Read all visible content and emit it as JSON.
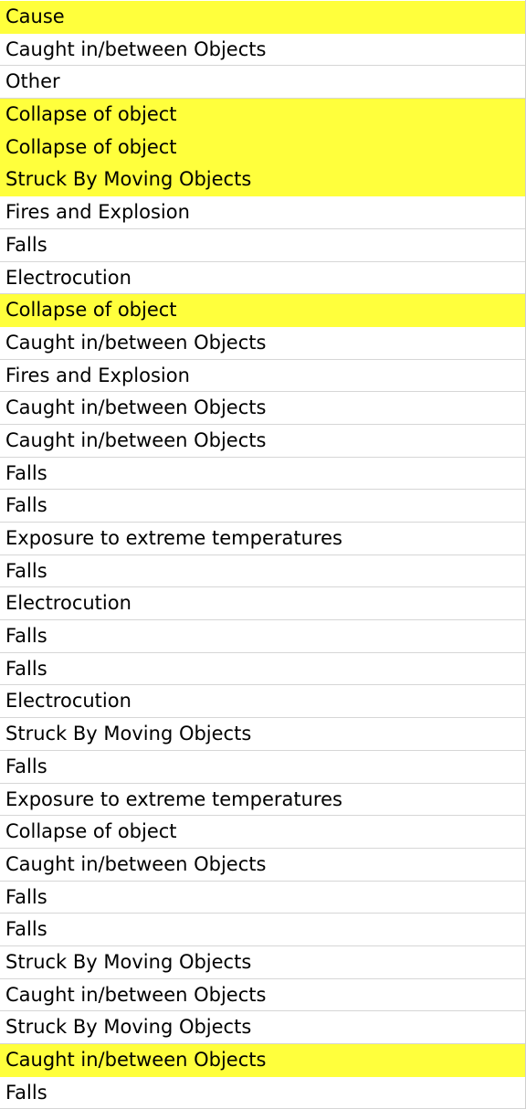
{
  "column": {
    "header": "Cause",
    "highlight_color": "#ffff3c",
    "rows": [
      {
        "text": "Cause",
        "highlighted": true
      },
      {
        "text": "Caught in/between Objects",
        "highlighted": false
      },
      {
        "text": "Other",
        "highlighted": false
      },
      {
        "text": "Collapse of object",
        "highlighted": true
      },
      {
        "text": "Collapse of object",
        "highlighted": true
      },
      {
        "text": "Struck By Moving Objects",
        "highlighted": true
      },
      {
        "text": "Fires and Explosion",
        "highlighted": false
      },
      {
        "text": "Falls",
        "highlighted": false
      },
      {
        "text": "Electrocution",
        "highlighted": false
      },
      {
        "text": "Collapse of object",
        "highlighted": true
      },
      {
        "text": "Caught in/between Objects",
        "highlighted": false
      },
      {
        "text": "Fires and Explosion",
        "highlighted": false
      },
      {
        "text": "Caught in/between Objects",
        "highlighted": false
      },
      {
        "text": "Caught in/between Objects",
        "highlighted": false
      },
      {
        "text": "Falls",
        "highlighted": false
      },
      {
        "text": "Falls",
        "highlighted": false
      },
      {
        "text": "Exposure to extreme temperatures",
        "highlighted": false
      },
      {
        "text": "Falls",
        "highlighted": false
      },
      {
        "text": "Electrocution",
        "highlighted": false
      },
      {
        "text": "Falls",
        "highlighted": false
      },
      {
        "text": "Falls",
        "highlighted": false
      },
      {
        "text": "Electrocution",
        "highlighted": false
      },
      {
        "text": "Struck By Moving Objects",
        "highlighted": false
      },
      {
        "text": "Falls",
        "highlighted": false
      },
      {
        "text": "Exposure to extreme temperatures",
        "highlighted": false
      },
      {
        "text": "Collapse of object",
        "highlighted": false
      },
      {
        "text": "Caught in/between Objects",
        "highlighted": false
      },
      {
        "text": "Falls",
        "highlighted": false
      },
      {
        "text": "Falls",
        "highlighted": false
      },
      {
        "text": "Struck By Moving Objects",
        "highlighted": false
      },
      {
        "text": "Caught in/between Objects",
        "highlighted": false
      },
      {
        "text": "Struck By Moving Objects",
        "highlighted": false
      },
      {
        "text": "Caught in/between Objects",
        "highlighted": true
      },
      {
        "text": "Falls",
        "highlighted": false
      }
    ]
  }
}
